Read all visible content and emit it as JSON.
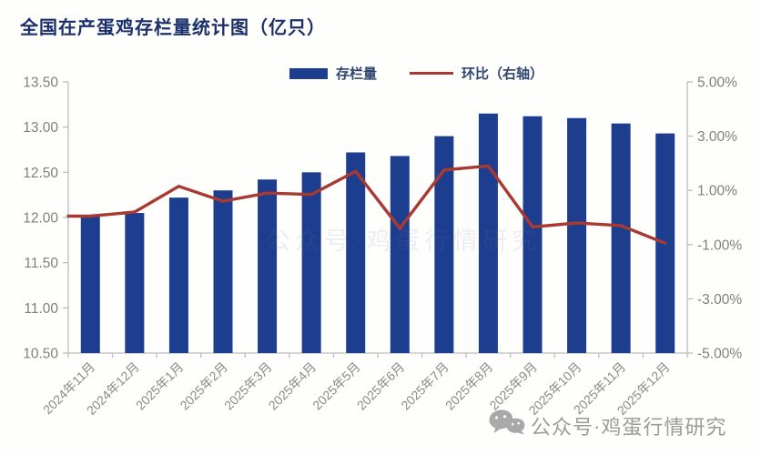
{
  "title": "全国在产蛋鸡存栏量统计图（亿只）",
  "legend": {
    "bar_label": "存栏量",
    "line_label": "环比（右轴）"
  },
  "watermark": {
    "icon": "wechat-icon",
    "text": "公众号·鸡蛋行情研究"
  },
  "colors": {
    "bar": "#1d3d8e",
    "line": "#a83a32",
    "title_text": "#1b2f6b",
    "axis_text": "#7f7f7f",
    "axis_line": "#bdbdbd",
    "watermark_text": "#9b9b9b"
  },
  "chart_data": {
    "type": "bar",
    "subtype": "bar-with-line-overlay",
    "title": "全国在产蛋鸡存栏量统计图（亿只）",
    "categories": [
      "2024年11月",
      "2024年12月",
      "2025年1月",
      "2025年2月",
      "2025年3月",
      "2025年4月",
      "2025年5月",
      "2025年6月",
      "2025年7月",
      "2025年8月",
      "2025年9月",
      "2025年10月",
      "2025年11月",
      "2025年12月"
    ],
    "series": [
      {
        "name": "存栏量",
        "type": "bar",
        "axis": "left",
        "unit": "亿只",
        "values": [
          12.02,
          12.05,
          12.22,
          12.3,
          12.42,
          12.5,
          12.72,
          12.68,
          12.9,
          13.15,
          13.12,
          13.1,
          13.04,
          12.93
        ]
      },
      {
        "name": "环比（右轴）",
        "type": "line",
        "axis": "right",
        "unit": "%",
        "values": [
          0.05,
          0.2,
          1.15,
          0.6,
          0.9,
          0.85,
          1.7,
          -0.4,
          1.75,
          1.9,
          -0.35,
          -0.2,
          -0.3,
          -0.95
        ]
      }
    ],
    "left_axis": {
      "min": 10.5,
      "max": 13.5,
      "step": 0.5,
      "ticks": [
        "13.50",
        "13.00",
        "12.50",
        "12.00",
        "11.50",
        "11.00",
        "10.50"
      ]
    },
    "right_axis": {
      "min": -5,
      "max": 5,
      "step": 2,
      "ticks": [
        "5.00%",
        "3.00%",
        "1.00%",
        "-1.00%",
        "-3.00%",
        "-5.00%"
      ]
    },
    "legend_position": "top",
    "grid": false,
    "x_label_rotation": -45
  }
}
